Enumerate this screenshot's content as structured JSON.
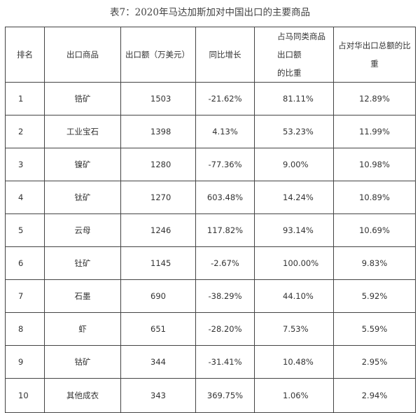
{
  "title": "表7：2020年马达加斯加对中国出口的主要商品",
  "headers": {
    "rank": "排名",
    "product": "出口商品",
    "value": "出口额（万美元）",
    "yoy": "同比增长",
    "share_same_line1": "占马同类商品出口额",
    "share_same_line2": "的比重",
    "share_china": "占对华出口总额的比重"
  },
  "rows": [
    {
      "rank": "1",
      "product": "锆矿",
      "value": "1503",
      "yoy": "-21.62%",
      "share_same": "81.11%",
      "share_china": "12.89%"
    },
    {
      "rank": "2",
      "product": "工业宝石",
      "value": "1398",
      "yoy": "4.13%",
      "share_same": "53.23%",
      "share_china": "11.99%"
    },
    {
      "rank": "3",
      "product": "镍矿",
      "value": "1280",
      "yoy": "-77.36%",
      "share_same": "9.00%",
      "share_china": "10.98%"
    },
    {
      "rank": "4",
      "product": "钛矿",
      "value": "1270",
      "yoy": "603.48%",
      "share_same": "14.24%",
      "share_china": "10.89%"
    },
    {
      "rank": "5",
      "product": "云母",
      "value": "1246",
      "yoy": "117.82%",
      "share_same": "93.14%",
      "share_china": "10.69%"
    },
    {
      "rank": "6",
      "product": "钍矿",
      "value": "1145",
      "yoy": "-2.67%",
      "share_same": "100.00%",
      "share_china": "9.83%"
    },
    {
      "rank": "7",
      "product": "石墨",
      "value": "690",
      "yoy": "-38.29%",
      "share_same": "44.10%",
      "share_china": "5.92%"
    },
    {
      "rank": "8",
      "product": "虾",
      "value": "651",
      "yoy": "-28.20%",
      "share_same": "7.53%",
      "share_china": "5.59%"
    },
    {
      "rank": "9",
      "product": "钴矿",
      "value": "344",
      "yoy": "-31.41%",
      "share_same": "10.48%",
      "share_china": "2.95%"
    },
    {
      "rank": "10",
      "product": "其他成衣",
      "value": "343",
      "yoy": "369.75%",
      "share_same": "1.06%",
      "share_china": "2.94%"
    }
  ]
}
